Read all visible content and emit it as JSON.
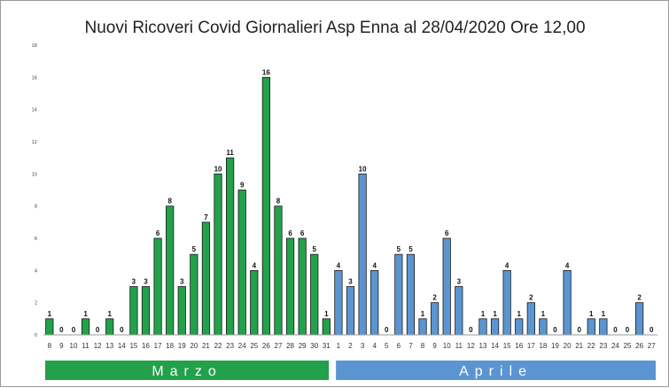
{
  "title": "Nuovi Ricoveri Covid Giornalieri Asp Enna al 28/04/2020 Ore 12,00",
  "colors": {
    "marzo": "#22a14a",
    "aprile": "#5b95d1",
    "bar_stroke": "#1a1a1a",
    "gridline": "#dcdcdc"
  },
  "months": [
    {
      "name": "Marzo",
      "color": "#22a14a"
    },
    {
      "name": "Aprile",
      "color": "#5b95d1"
    }
  ],
  "chart_data": {
    "type": "bar",
    "title": "Nuovi Ricoveri Covid Giornalieri Asp Enna al 28/04/2020 Ore 12,00",
    "xlabel": "",
    "ylabel": "",
    "ylim": [
      0,
      18
    ],
    "yticks": [
      0,
      2,
      4,
      6,
      8,
      10,
      12,
      14,
      16,
      18
    ],
    "grid": false,
    "data_labels": true,
    "series": [
      {
        "month": "Marzo",
        "color": "#22a14a",
        "categories": [
          "8",
          "9",
          "10",
          "11",
          "12",
          "13",
          "14",
          "15",
          "16",
          "17",
          "18",
          "19",
          "20",
          "21",
          "22",
          "23",
          "24",
          "25",
          "26",
          "27",
          "28",
          "29",
          "30",
          "31"
        ],
        "values": [
          1,
          0,
          0,
          1,
          0,
          1,
          0,
          3,
          3,
          6,
          8,
          3,
          5,
          7,
          10,
          11,
          9,
          4,
          16,
          8,
          6,
          6,
          5,
          1
        ]
      },
      {
        "month": "Aprile",
        "color": "#5b95d1",
        "categories": [
          "1",
          "2",
          "3",
          "4",
          "5",
          "6",
          "7",
          "8",
          "9",
          "10",
          "11",
          "12",
          "13",
          "14",
          "15",
          "16",
          "17",
          "18",
          "19",
          "20",
          "21",
          "22",
          "23",
          "24",
          "25",
          "26",
          "27"
        ],
        "values": [
          4,
          3,
          10,
          4,
          0,
          5,
          5,
          1,
          2,
          6,
          3,
          0,
          1,
          1,
          4,
          1,
          2,
          1,
          0,
          4,
          0,
          1,
          1,
          0,
          0,
          2,
          0
        ]
      }
    ]
  }
}
